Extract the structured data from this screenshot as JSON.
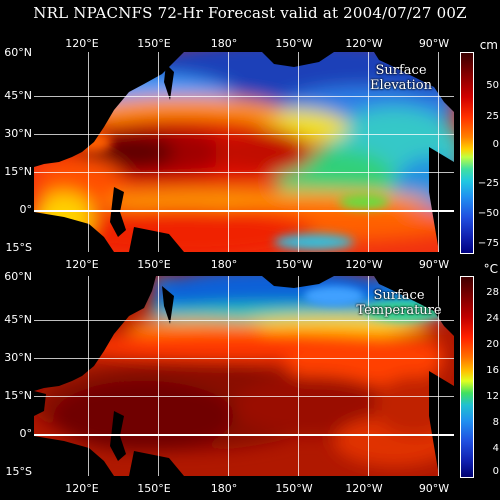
{
  "title": "NRL NPACNFS 72-Hr Forecast valid at 2004/07/27 00Z",
  "longitude_labels": [
    "120°E",
    "150°E",
    "180°",
    "150°W",
    "120°W",
    "90°W"
  ],
  "latitude_labels": [
    "60°N",
    "45°N",
    "30°N",
    "15°N",
    "0°",
    "15°S"
  ],
  "panels": [
    {
      "id": "surface-elevation",
      "label_line1": "Surface",
      "label_line2": "Elevation",
      "unit": "cm",
      "colorbar_ticks": [
        "50",
        "25",
        "0",
        "−25",
        "−50",
        "−75"
      ],
      "colorbar_range": [
        -80,
        75
      ]
    },
    {
      "id": "surface-temperature",
      "label_line1": "Surface",
      "label_line2": "Temperature",
      "unit": "°C",
      "colorbar_ticks": [
        "28",
        "24",
        "20",
        "16",
        "12",
        "8",
        "4",
        "0"
      ],
      "colorbar_range": [
        0,
        30
      ]
    }
  ],
  "colors": {
    "land": "#000000",
    "grid": "#ffffff"
  }
}
